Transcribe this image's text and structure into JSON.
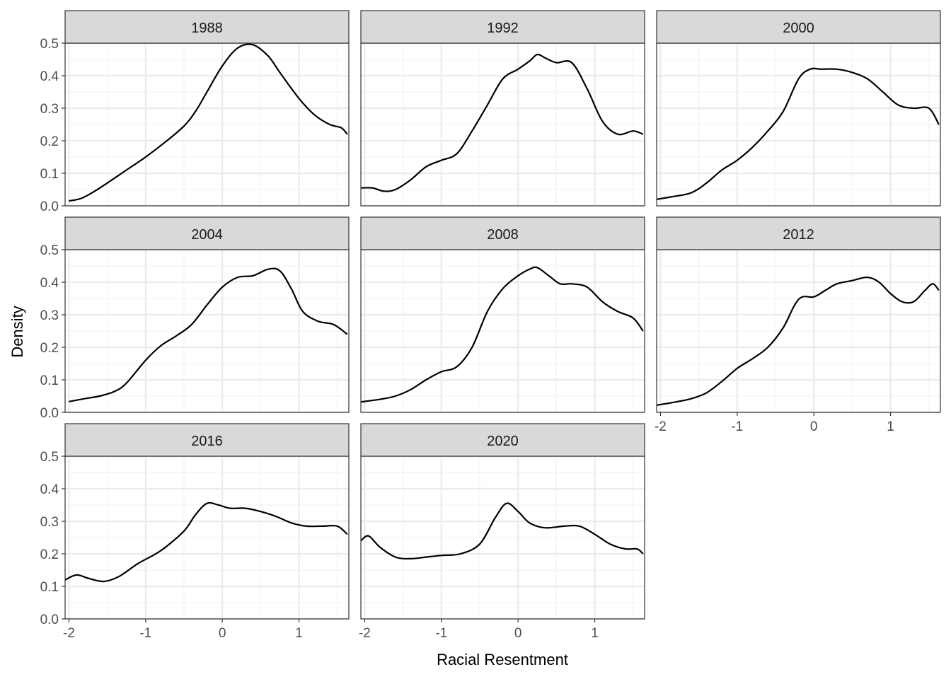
{
  "chart_data": {
    "type": "line",
    "xlabel": "Racial Resentment",
    "ylabel": "Density",
    "xlim": [
      -2.05,
      1.65
    ],
    "ylim": [
      0,
      0.5
    ],
    "x_ticks": [
      "-2",
      "-1",
      "0",
      "1"
    ],
    "x_tick_values": [
      -2,
      -1,
      0,
      1
    ],
    "y_ticks": [
      "0.0",
      "0.1",
      "0.2",
      "0.3",
      "0.4",
      "0.5"
    ],
    "y_tick_values": [
      0,
      0.1,
      0.2,
      0.3,
      0.4,
      0.5
    ],
    "grid": true,
    "facets": [
      {
        "label": "1988",
        "x": [
          -2,
          -1.85,
          -1.7,
          -1.5,
          -1.25,
          -1,
          -0.75,
          -0.5,
          -0.35,
          -0.2,
          0,
          0.2,
          0.4,
          0.6,
          0.75,
          1,
          1.2,
          1.4,
          1.55,
          1.63
        ],
        "y": [
          0.015,
          0.022,
          0.04,
          0.07,
          0.11,
          0.15,
          0.195,
          0.245,
          0.29,
          0.35,
          0.43,
          0.485,
          0.495,
          0.46,
          0.41,
          0.33,
          0.28,
          0.25,
          0.24,
          0.22
        ]
      },
      {
        "label": "1992",
        "x": [
          -2.05,
          -1.9,
          -1.75,
          -1.6,
          -1.4,
          -1.2,
          -1,
          -0.8,
          -0.6,
          -0.4,
          -0.2,
          0,
          0.15,
          0.25,
          0.35,
          0.5,
          0.7,
          0.9,
          1.1,
          1.3,
          1.5,
          1.63
        ],
        "y": [
          0.055,
          0.055,
          0.045,
          0.05,
          0.08,
          0.12,
          0.14,
          0.16,
          0.23,
          0.31,
          0.39,
          0.42,
          0.445,
          0.465,
          0.455,
          0.44,
          0.44,
          0.36,
          0.26,
          0.22,
          0.23,
          0.22
        ]
      },
      {
        "label": "2000",
        "x": [
          -2.05,
          -1.85,
          -1.6,
          -1.4,
          -1.2,
          -1,
          -0.8,
          -0.6,
          -0.4,
          -0.2,
          -0.05,
          0.1,
          0.3,
          0.5,
          0.7,
          0.9,
          1.1,
          1.3,
          1.5,
          1.63
        ],
        "y": [
          0.02,
          0.028,
          0.04,
          0.07,
          0.11,
          0.14,
          0.18,
          0.23,
          0.29,
          0.39,
          0.42,
          0.42,
          0.42,
          0.41,
          0.39,
          0.35,
          0.31,
          0.3,
          0.3,
          0.25
        ]
      },
      {
        "label": "2004",
        "x": [
          -2,
          -1.8,
          -1.6,
          -1.4,
          -1.25,
          -1,
          -0.8,
          -0.6,
          -0.4,
          -0.2,
          0,
          0.2,
          0.4,
          0.6,
          0.75,
          0.9,
          1.05,
          1.25,
          1.45,
          1.63
        ],
        "y": [
          0.033,
          0.042,
          0.05,
          0.065,
          0.09,
          0.16,
          0.205,
          0.235,
          0.27,
          0.33,
          0.385,
          0.415,
          0.42,
          0.44,
          0.435,
          0.38,
          0.31,
          0.28,
          0.27,
          0.24
        ]
      },
      {
        "label": "2008",
        "x": [
          -2.05,
          -1.8,
          -1.6,
          -1.4,
          -1.2,
          -1,
          -0.8,
          -0.6,
          -0.4,
          -0.2,
          0,
          0.15,
          0.25,
          0.4,
          0.55,
          0.7,
          0.9,
          1.1,
          1.3,
          1.5,
          1.63
        ],
        "y": [
          0.032,
          0.04,
          0.05,
          0.07,
          0.1,
          0.125,
          0.14,
          0.2,
          0.31,
          0.38,
          0.42,
          0.44,
          0.445,
          0.42,
          0.395,
          0.395,
          0.385,
          0.34,
          0.31,
          0.29,
          0.25
        ]
      },
      {
        "label": "2012",
        "x": [
          -2.05,
          -1.8,
          -1.6,
          -1.4,
          -1.2,
          -1,
          -0.8,
          -0.6,
          -0.4,
          -0.25,
          -0.15,
          0,
          0.15,
          0.3,
          0.5,
          0.7,
          0.85,
          1,
          1.15,
          1.3,
          1.45,
          1.55,
          1.63
        ],
        "y": [
          0.022,
          0.032,
          0.042,
          0.06,
          0.095,
          0.135,
          0.165,
          0.2,
          0.26,
          0.33,
          0.355,
          0.355,
          0.375,
          0.395,
          0.405,
          0.415,
          0.4,
          0.365,
          0.34,
          0.34,
          0.375,
          0.395,
          0.375
        ]
      },
      {
        "label": "2016",
        "x": [
          -2.05,
          -1.9,
          -1.75,
          -1.55,
          -1.35,
          -1.1,
          -0.8,
          -0.5,
          -0.35,
          -0.2,
          -0.05,
          0.1,
          0.3,
          0.5,
          0.7,
          0.9,
          1.1,
          1.3,
          1.5,
          1.63
        ],
        "y": [
          0.12,
          0.135,
          0.125,
          0.115,
          0.13,
          0.17,
          0.21,
          0.27,
          0.32,
          0.355,
          0.35,
          0.34,
          0.34,
          0.33,
          0.315,
          0.295,
          0.285,
          0.285,
          0.285,
          0.26
        ]
      },
      {
        "label": "2020",
        "x": [
          -2.05,
          -1.95,
          -1.8,
          -1.6,
          -1.4,
          -1.2,
          -1,
          -0.75,
          -0.5,
          -0.3,
          -0.15,
          0,
          0.15,
          0.35,
          0.6,
          0.8,
          1,
          1.2,
          1.4,
          1.55,
          1.63
        ],
        "y": [
          0.24,
          0.255,
          0.22,
          0.19,
          0.185,
          0.19,
          0.195,
          0.2,
          0.23,
          0.31,
          0.355,
          0.33,
          0.295,
          0.28,
          0.285,
          0.285,
          0.26,
          0.23,
          0.215,
          0.215,
          0.2
        ]
      }
    ]
  },
  "colors": {
    "panel_border": "#333333",
    "strip_fill": "#d9d9d9",
    "grid_major": "#ebebeb",
    "grid_minor": "#f3f3f3",
    "line": "#000000",
    "tick_text": "#4d4d4d"
  }
}
